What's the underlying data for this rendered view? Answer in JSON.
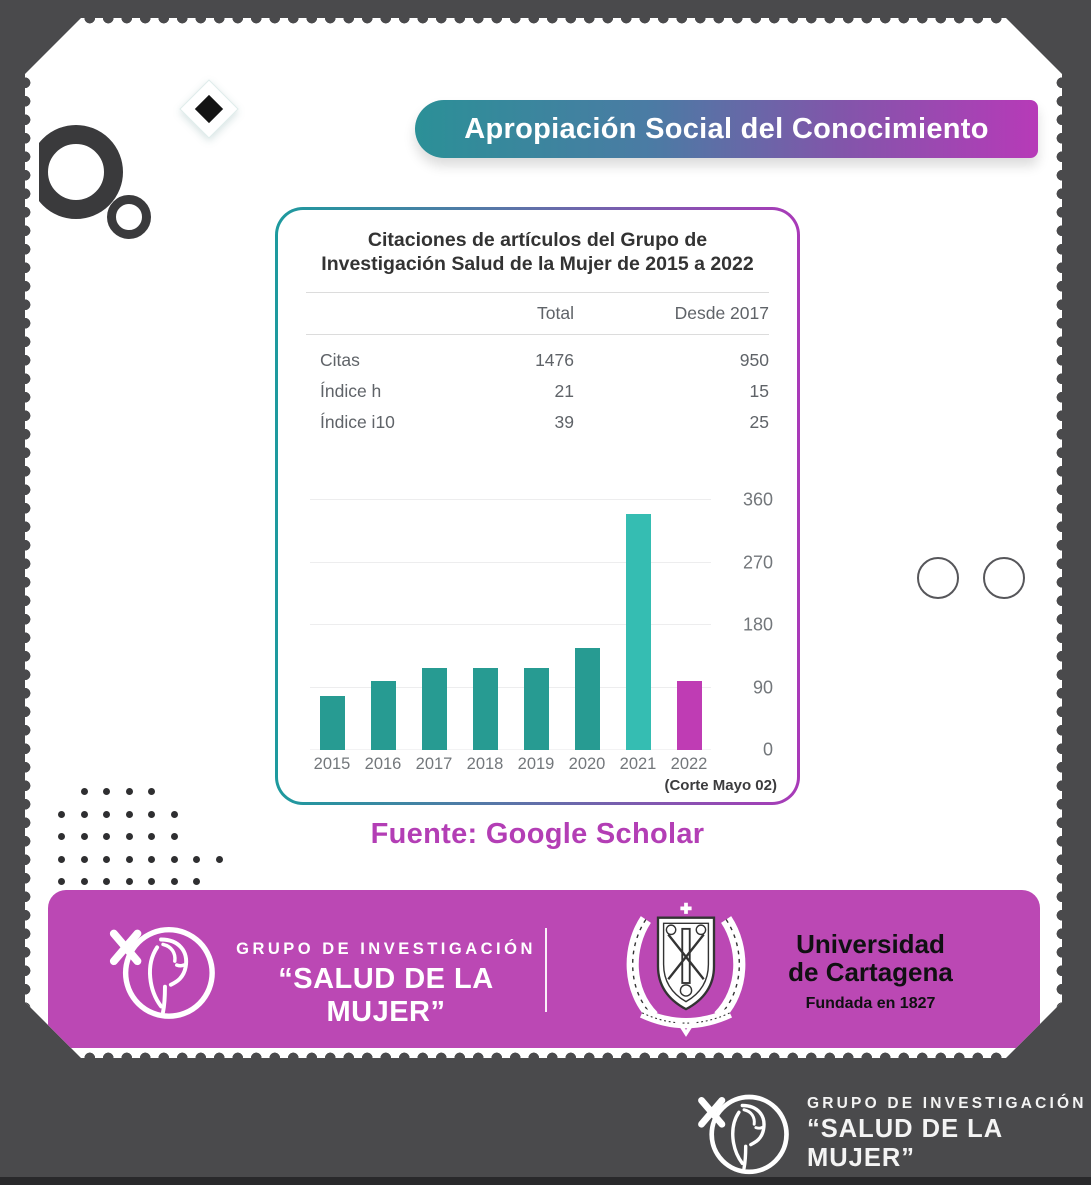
{
  "header": {
    "banner_label": "Apropiación Social del Conocimiento"
  },
  "scholar_card": {
    "title_line1": "Citaciones de artículos del Grupo de",
    "title_line2": "Investigación Salud de la Mujer de 2015 a 2022",
    "table": {
      "col_total": "Total",
      "col_desde": "Desde 2017",
      "rows": [
        {
          "label": "Citas",
          "total": "1476",
          "desde": "950"
        },
        {
          "label": "Índice h",
          "total": "21",
          "desde": "15"
        },
        {
          "label": "Índice i10",
          "total": "39",
          "desde": "25"
        }
      ]
    }
  },
  "chart_data": {
    "type": "bar",
    "title": "Citaciones de artículos del Grupo de Investigación Salud de la Mujer de 2015 a 2022",
    "categories": [
      "2015",
      "2016",
      "2017",
      "2018",
      "2019",
      "2020",
      "2021",
      "2022"
    ],
    "values": [
      78,
      100,
      118,
      118,
      118,
      147,
      340,
      100
    ],
    "y_ticks": [
      0,
      90,
      180,
      270,
      360
    ],
    "ylim": [
      0,
      360
    ],
    "y_axis_position": "right",
    "grid": true,
    "legend": "none",
    "bar_colors": [
      "#279b92",
      "#279b92",
      "#279b92",
      "#279b92",
      "#279b92",
      "#279b92",
      "#35bdb2",
      "#bf3cb4"
    ],
    "annotation": "(Corte Mayo 02)",
    "source_label": "Fuente: Google Scholar"
  },
  "footer_banner": {
    "group_label": "GRUPO DE INVESTIGACIÓN",
    "group_name": "“SALUD DE LA MUJER”",
    "university_name_line1": "Universidad",
    "university_name_line2": "de Cartagena",
    "university_founded": "Fundada en 1827"
  },
  "dark_footer": {
    "group_label": "GRUPO DE INVESTIGACIÓN",
    "group_name": "“SALUD DE LA MUJER”"
  },
  "colors": {
    "background": "#4a4a4c",
    "header_gradient_start": "#2b9097",
    "header_gradient_end": "#b73ab8",
    "card_border_start": "#1d9a9e",
    "card_border_end": "#a93ab8",
    "bar_teal": "#279b92",
    "bar_teal_light": "#35bdb2",
    "bar_magenta": "#bf3cb4",
    "footer_banner_bg": "#bb48b4",
    "source_text": "#b33eb5"
  }
}
